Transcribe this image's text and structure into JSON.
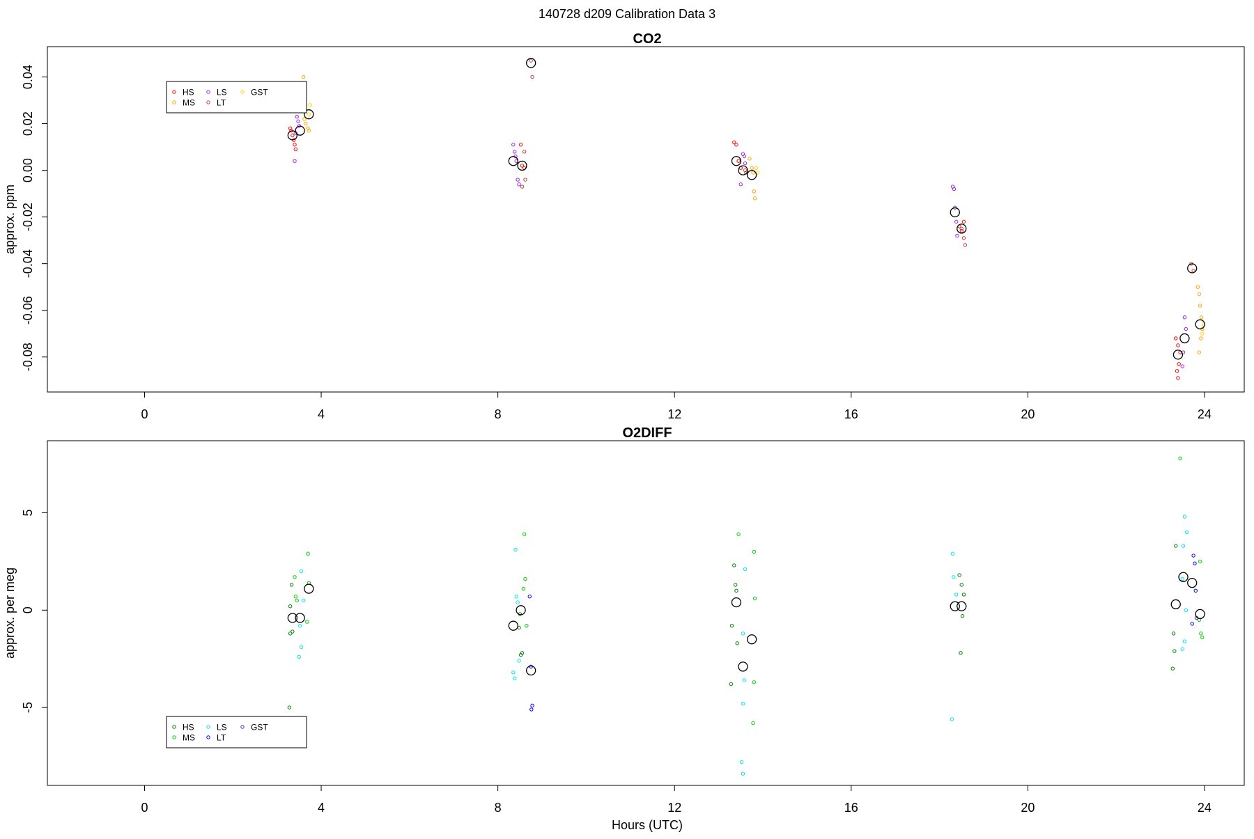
{
  "figure": {
    "title": "140728   d209   Calibration Data 3"
  },
  "colors": {
    "HS": "#ff0000",
    "MS": "#ffa500",
    "LS": "#a020f0",
    "LT": "#cd3b3b",
    "GST": "#ffd700",
    "HS2": "#008000",
    "MS2": "#00cd00",
    "LS2": "#00e5ee",
    "LT2": "#0000ff",
    "GST2": "#3030cc"
  },
  "chart_data": [
    {
      "type": "scatter",
      "title": "CO2",
      "xlabel": "",
      "ylabel": "approx. ppm",
      "xlim": [
        -2.2,
        24.9
      ],
      "ylim": [
        -0.095,
        0.053
      ],
      "xticks": [
        0,
        4,
        8,
        12,
        16,
        20,
        24
      ],
      "yticks": [
        -0.08,
        -0.06,
        -0.04,
        -0.02,
        0.0,
        0.02,
        0.04
      ],
      "ytick_labels": [
        "-0.08",
        "-0.06",
        "-0.04",
        "-0.02",
        "0.00",
        "0.02",
        "0.04"
      ],
      "legend": {
        "placement": "top-left",
        "entries": [
          "HS",
          "MS",
          "LS",
          "LT",
          "GST"
        ]
      },
      "series": [
        {
          "name": "HS",
          "color": "#ff0000",
          "points": [
            [
              3.3,
              0.018
            ],
            [
              3.32,
              0.017
            ],
            [
              3.35,
              0.015
            ],
            [
              3.38,
              0.013
            ],
            [
              3.4,
              0.011
            ],
            [
              3.42,
              0.009
            ],
            [
              8.55,
              0.002
            ],
            [
              8.6,
              0.001
            ],
            [
              8.52,
              0.011
            ],
            [
              13.35,
              0.012
            ],
            [
              13.4,
              0.011
            ],
            [
              13.45,
              0.004
            ],
            [
              13.5,
              0.001
            ],
            [
              18.45,
              -0.024
            ],
            [
              18.5,
              -0.026
            ],
            [
              18.55,
              -0.022
            ],
            [
              23.35,
              -0.072
            ],
            [
              23.4,
              -0.075
            ],
            [
              23.45,
              -0.078
            ],
            [
              23.42,
              -0.083
            ],
            [
              23.38,
              -0.086
            ],
            [
              23.4,
              -0.089
            ]
          ]
        },
        {
          "name": "MS",
          "color": "#ffa500",
          "points": [
            [
              3.6,
              0.04
            ],
            [
              3.62,
              0.022
            ],
            [
              3.65,
              0.02
            ],
            [
              3.7,
              0.018
            ],
            [
              3.72,
              0.017
            ],
            [
              13.7,
              0.005
            ],
            [
              13.75,
              0.001
            ],
            [
              13.78,
              -0.001
            ],
            [
              13.8,
              -0.009
            ],
            [
              13.82,
              -0.012
            ],
            [
              23.85,
              -0.05
            ],
            [
              23.88,
              -0.053
            ],
            [
              23.9,
              -0.058
            ],
            [
              23.93,
              -0.063
            ],
            [
              23.95,
              -0.068
            ],
            [
              23.92,
              -0.072
            ],
            [
              23.88,
              -0.078
            ]
          ]
        },
        {
          "name": "LS",
          "color": "#a020f0",
          "points": [
            [
              3.45,
              0.023
            ],
            [
              3.48,
              0.021
            ],
            [
              3.5,
              0.019
            ],
            [
              3.42,
              0.016
            ],
            [
              3.4,
              0.004
            ],
            [
              8.35,
              0.011
            ],
            [
              8.38,
              0.008
            ],
            [
              8.4,
              0.006
            ],
            [
              8.42,
              0.004
            ],
            [
              8.45,
              -0.004
            ],
            [
              8.48,
              -0.006
            ],
            [
              13.55,
              0.007
            ],
            [
              13.58,
              0.006
            ],
            [
              13.6,
              0.003
            ],
            [
              13.5,
              -0.006
            ],
            [
              18.3,
              -0.007
            ],
            [
              18.33,
              -0.008
            ],
            [
              18.35,
              -0.016
            ],
            [
              18.38,
              -0.022
            ],
            [
              18.4,
              -0.028
            ],
            [
              23.55,
              -0.063
            ],
            [
              23.58,
              -0.068
            ],
            [
              23.52,
              -0.078
            ],
            [
              23.5,
              -0.084
            ]
          ]
        },
        {
          "name": "LT",
          "color": "#cd3b3b",
          "points": [
            [
              8.75,
              0.047
            ],
            [
              8.78,
              0.04
            ],
            [
              8.6,
              0.008
            ],
            [
              8.62,
              -0.004
            ],
            [
              8.55,
              -0.007
            ],
            [
              13.6,
              0.0
            ],
            [
              13.62,
              -0.001
            ],
            [
              18.5,
              -0.025
            ],
            [
              18.55,
              -0.029
            ],
            [
              18.58,
              -0.032
            ],
            [
              23.7,
              -0.04
            ],
            [
              23.75,
              -0.043
            ]
          ]
        },
        {
          "name": "GST",
          "color": "#ffd700",
          "points": [
            [
              3.75,
              0.028
            ],
            [
              3.72,
              0.024
            ],
            [
              13.85,
              0.001
            ],
            [
              13.88,
              -0.001
            ],
            [
              23.98,
              -0.066
            ],
            [
              23.95,
              -0.07
            ]
          ]
        },
        {
          "name": "",
          "color": "#000000",
          "big": true,
          "points": [
            [
              3.35,
              0.015
            ],
            [
              3.52,
              0.017
            ],
            [
              3.72,
              0.024
            ],
            [
              8.35,
              0.004
            ],
            [
              8.55,
              0.002
            ],
            [
              8.75,
              0.046
            ],
            [
              13.4,
              0.004
            ],
            [
              13.55,
              0.0
            ],
            [
              13.75,
              -0.002
            ],
            [
              18.35,
              -0.018
            ],
            [
              18.5,
              -0.025
            ],
            [
              23.4,
              -0.079
            ],
            [
              23.55,
              -0.072
            ],
            [
              23.72,
              -0.042
            ],
            [
              23.9,
              -0.066
            ]
          ]
        }
      ]
    },
    {
      "type": "scatter",
      "title": "O2DIFF",
      "xlabel": "Hours (UTC)",
      "ylabel": "approx. per meg",
      "xlim": [
        -2.2,
        24.9
      ],
      "ylim": [
        -9,
        8.7
      ],
      "xticks": [
        0,
        4,
        8,
        12,
        16,
        20,
        24
      ],
      "yticks": [
        -5,
        0,
        5
      ],
      "ytick_labels": [
        "-5",
        "0",
        "5"
      ],
      "legend": {
        "placement": "bottom-left",
        "entries": [
          "HS",
          "MS",
          "LS",
          "LT",
          "GST"
        ]
      },
      "series": [
        {
          "name": "HS",
          "color": "#008000",
          "points": [
            [
              3.3,
              0.2
            ],
            [
              3.33,
              1.3
            ],
            [
              3.35,
              -1.1
            ],
            [
              3.3,
              -1.2
            ],
            [
              3.28,
              -5.0
            ],
            [
              8.5,
              -0.2
            ],
            [
              8.48,
              -0.9
            ],
            [
              8.55,
              -2.2
            ],
            [
              8.52,
              -2.3
            ],
            [
              13.35,
              2.3
            ],
            [
              13.38,
              1.3
            ],
            [
              13.4,
              1.0
            ],
            [
              13.3,
              -0.8
            ],
            [
              13.42,
              -1.7
            ],
            [
              13.28,
              -3.8
            ],
            [
              18.45,
              1.8
            ],
            [
              18.5,
              1.3
            ],
            [
              18.55,
              0.8
            ],
            [
              18.52,
              -0.3
            ],
            [
              18.48,
              -2.2
            ],
            [
              23.35,
              3.3
            ],
            [
              23.3,
              -1.2
            ],
            [
              23.32,
              -2.1
            ],
            [
              23.28,
              -3.0
            ]
          ]
        },
        {
          "name": "MS",
          "color": "#00cd00",
          "points": [
            [
              3.4,
              1.7
            ],
            [
              3.42,
              0.7
            ],
            [
              3.45,
              0.5
            ],
            [
              3.7,
              2.9
            ],
            [
              3.72,
              1.4
            ],
            [
              3.68,
              -0.6
            ],
            [
              8.6,
              3.9
            ],
            [
              8.62,
              1.6
            ],
            [
              8.58,
              1.1
            ],
            [
              8.65,
              -0.8
            ],
            [
              13.45,
              3.9
            ],
            [
              13.8,
              3.0
            ],
            [
              13.82,
              0.6
            ],
            [
              13.8,
              -3.7
            ],
            [
              13.78,
              -5.8
            ],
            [
              23.45,
              7.8
            ],
            [
              23.9,
              2.5
            ],
            [
              23.92,
              -1.2
            ],
            [
              23.95,
              -1.4
            ],
            [
              23.88,
              -0.5
            ]
          ]
        },
        {
          "name": "LS",
          "color": "#00e5ee",
          "points": [
            [
              3.55,
              2.0
            ],
            [
              3.6,
              0.5
            ],
            [
              3.52,
              -0.8
            ],
            [
              3.55,
              -1.9
            ],
            [
              3.5,
              -2.4
            ],
            [
              8.4,
              3.1
            ],
            [
              8.42,
              0.7
            ],
            [
              8.45,
              0.4
            ],
            [
              8.48,
              -2.6
            ],
            [
              8.35,
              -3.2
            ],
            [
              8.38,
              -3.5
            ],
            [
              13.6,
              2.1
            ],
            [
              13.55,
              -1.2
            ],
            [
              13.58,
              -3.6
            ],
            [
              13.55,
              -4.8
            ],
            [
              13.52,
              -7.8
            ],
            [
              13.55,
              -8.4
            ],
            [
              18.3,
              2.9
            ],
            [
              18.32,
              1.7
            ],
            [
              18.38,
              0.8
            ],
            [
              18.28,
              -5.6
            ],
            [
              23.55,
              4.8
            ],
            [
              23.6,
              4.0
            ],
            [
              23.52,
              3.3
            ],
            [
              23.5,
              1.6
            ],
            [
              23.58,
              0.0
            ],
            [
              23.55,
              -1.6
            ],
            [
              23.5,
              -2.0
            ]
          ]
        },
        {
          "name": "LT",
          "color": "#0000ff",
          "points": [
            [
              8.72,
              0.7
            ],
            [
              8.75,
              -2.9
            ],
            [
              8.78,
              -4.9
            ],
            [
              8.76,
              -5.1
            ],
            [
              23.75,
              2.8
            ],
            [
              23.78,
              2.4
            ],
            [
              23.8,
              1.0
            ],
            [
              23.72,
              -0.7
            ]
          ]
        },
        {
          "name": "GST",
          "color": "#3030cc",
          "points": [
            [
              23.82,
              -0.4
            ]
          ]
        },
        {
          "name": "",
          "color": "#000000",
          "big": true,
          "points": [
            [
              3.35,
              -0.4
            ],
            [
              3.52,
              -0.4
            ],
            [
              3.72,
              1.1
            ],
            [
              8.35,
              -0.8
            ],
            [
              8.52,
              0.0
            ],
            [
              8.75,
              -3.1
            ],
            [
              13.4,
              0.4
            ],
            [
              13.55,
              -2.9
            ],
            [
              13.75,
              -1.5
            ],
            [
              18.35,
              0.2
            ],
            [
              18.5,
              0.2
            ],
            [
              23.35,
              0.3
            ],
            [
              23.52,
              1.7
            ],
            [
              23.72,
              1.4
            ],
            [
              23.9,
              -0.2
            ]
          ]
        }
      ]
    }
  ]
}
